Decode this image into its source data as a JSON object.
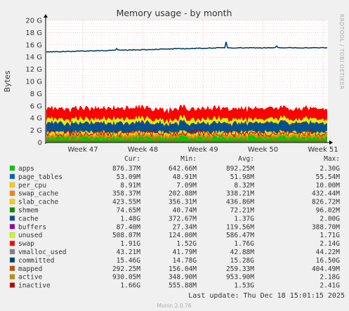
{
  "chart_data": {
    "type": "area",
    "title": "Memory usage - by month",
    "ylabel": "Bytes",
    "side_label": "RRDTOOL / TOBI OETIKER",
    "ylim": [
      0,
      20
    ],
    "y_unit": "G",
    "yticks": [
      "0",
      "2 G",
      "4 G",
      "6 G",
      "8 G",
      "10 G",
      "12 G",
      "14 G",
      "16 G",
      "18 G",
      "20 G"
    ],
    "xticks": [
      "Week 47",
      "Week 48",
      "Week 49",
      "Week 50",
      "Week 51"
    ],
    "grid": true,
    "legend_columns": [
      "Cur:",
      "Min:",
      "Avg:",
      "Max:"
    ],
    "series": [
      {
        "name": "apps",
        "color": "#00cc00",
        "cur": "876.37M",
        "min": "642.66M",
        "avg": "892.25M",
        "max": "2.30G"
      },
      {
        "name": "page_tables",
        "color": "#0066b3",
        "cur": "53.09M",
        "min": "48.91M",
        "avg": "51.98M",
        "max": "55.54M"
      },
      {
        "name": "per_cpu",
        "color": "#ffcc00",
        "cur": "8.91M",
        "min": "7.09M",
        "avg": "8.32M",
        "max": "10.00M"
      },
      {
        "name": "swap_cache",
        "color": "#ff8000",
        "cur": "358.37M",
        "min": "202.88M",
        "avg": "338.21M",
        "max": "432.44M"
      },
      {
        "name": "slab_cache",
        "color": "#ffcc00",
        "cur": "423.55M",
        "min": "356.31M",
        "avg": "436.86M",
        "max": "826.72M"
      },
      {
        "name": "shmem",
        "color": "#008f00",
        "cur": "74.65M",
        "min": "40.74M",
        "avg": "72.21M",
        "max": "96.02M"
      },
      {
        "name": "cache",
        "color": "#00528f",
        "cur": "1.48G",
        "min": "372.67M",
        "avg": "1.37G",
        "max": "2.00G"
      },
      {
        "name": "buffers",
        "color": "#990099",
        "cur": "87.40M",
        "min": "27.34M",
        "avg": "119.56M",
        "max": "388.70M"
      },
      {
        "name": "unused",
        "color": "#ccff00",
        "cur": "508.07M",
        "min": "124.00M",
        "avg": "586.47M",
        "max": "1.71G"
      },
      {
        "name": "swap",
        "color": "#ff0000",
        "cur": "1.91G",
        "min": "1.52G",
        "avg": "1.76G",
        "max": "2.14G"
      },
      {
        "name": "vmalloc_used",
        "color": "#808080",
        "cur": "43.21M",
        "min": "41.79M",
        "avg": "42.88M",
        "max": "44.22M"
      },
      {
        "name": "committed",
        "color": "#00406b",
        "cur": "15.46G",
        "min": "14.78G",
        "avg": "15.28G",
        "max": "16.50G"
      },
      {
        "name": "mapped",
        "color": "#c05000",
        "cur": "292.25M",
        "min": "156.04M",
        "avg": "259.33M",
        "max": "404.49M"
      },
      {
        "name": "active",
        "color": "#c09000",
        "cur": "930.05M",
        "min": "348.90M",
        "avg": "953.90M",
        "max": "2.18G"
      },
      {
        "name": "inactive",
        "color": "#c00000",
        "cur": "1.66G",
        "min": "555.88M",
        "avg": "1.53G",
        "max": "2.41G"
      }
    ],
    "last_update": "Last update:  Thu Dec 18 15:01:15 2025",
    "footer": "Munin 2.0.76"
  }
}
